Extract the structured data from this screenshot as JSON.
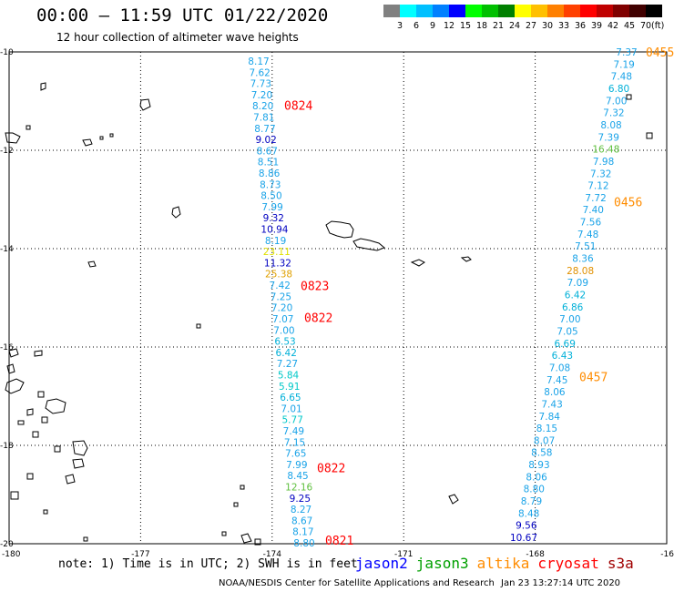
{
  "header": {
    "title": "00:00 – 11:59 UTC 01/22/2020",
    "subtitle": "12 hour collection of altimeter wave heights"
  },
  "colorbar": {
    "colors": [
      "#808080",
      "#00ffff",
      "#00c0ff",
      "#0080ff",
      "#0000ff",
      "#00ff00",
      "#00c000",
      "#008000",
      "#ffff00",
      "#ffc000",
      "#ff8000",
      "#ff4000",
      "#ff0000",
      "#c00000",
      "#800000",
      "#400000",
      "#000000"
    ],
    "labels": [
      "3",
      "6",
      "9",
      "12",
      "15",
      "18",
      "21",
      "24",
      "27",
      "30",
      "33",
      "36",
      "39",
      "42",
      "45",
      "70"
    ],
    "unit": "(ft)"
  },
  "map": {
    "lon_ticks": [
      "-180",
      "-177",
      "-174",
      "-171",
      "-168",
      "-16"
    ],
    "lat_ticks": [
      "-10",
      "-12",
      "-14",
      "-16",
      "-18",
      "-20"
    ],
    "lon_range": [
      -180,
      -165
    ],
    "lat_range": [
      -20,
      -10
    ]
  },
  "tracks": {
    "west": {
      "color": "#1aa3e8",
      "values": [
        "8.17",
        "7.62",
        "7.73",
        "7.20",
        "8.20",
        "7.81",
        "8.77",
        "9.02",
        "8.67",
        "8.51",
        "8.86",
        "8.73",
        "8.50",
        "7.99",
        "9.32",
        "10.94",
        "8.19",
        "23.11",
        "11.32",
        "25.38",
        "7.42",
        "7.25",
        "7.20",
        "7.07",
        "7.00",
        "6.53",
        "6.42",
        "7.27",
        "5.84",
        "5.91",
        "6.65",
        "7.01",
        "5.77",
        "7.49",
        "7.15",
        "7.65",
        "7.99",
        "8.45",
        "12.16",
        "9.25",
        "8.27",
        "8.67",
        "8.17",
        "8.80"
      ],
      "value_colors": {
        "9.02": "#0000c0",
        "9.32": "#0000c0",
        "10.94": "#0000c0",
        "11.32": "#0000c0",
        "9.25": "#0000c0",
        "23.11": "#e0e000",
        "25.38": "#e0a000",
        "12.16": "#60c040",
        "5.84": "#00c8c8",
        "5.91": "#00c8c8",
        "5.77": "#00c8c8",
        "6.53": "#00b0d8",
        "6.42": "#00b0d8",
        "6.65": "#00b0d8"
      },
      "times": [
        {
          "label": "0824",
          "lat": -11.08
        },
        {
          "label": "0823",
          "lat": -14.75
        },
        {
          "label": "0822",
          "lat": -15.4
        },
        {
          "label": "0822",
          "lat": -18.45
        },
        {
          "label": "0821",
          "lat": -19.93
        }
      ]
    },
    "east": {
      "color": "#1aa3e8",
      "values": [
        "7.37",
        "7.19",
        "7.48",
        "6.80",
        "7.00",
        "7.32",
        "8.08",
        "7.39",
        "16.48",
        "7.98",
        "7.32",
        "7.12",
        "7.72",
        "7.40",
        "7.56",
        "7.48",
        "7.51",
        "8.36",
        "28.08",
        "7.09",
        "6.42",
        "6.86",
        "7.00",
        "7.05",
        "6.69",
        "6.43",
        "7.08",
        "7.45",
        "8.06",
        "7.43",
        "7.84",
        "8.15",
        "8.07",
        "8.58",
        "8.93",
        "8.06",
        "8.80",
        "8.79",
        "8.48",
        "9.56",
        "10.67"
      ],
      "value_colors": {
        "16.48": "#60c040",
        "28.08": "#e09000",
        "6.42": "#00b0d8",
        "6.80": "#00b0d8",
        "6.86": "#00b0d8",
        "6.69": "#00b0d8",
        "6.43": "#00b0d8",
        "9.56": "#0000c0",
        "10.67": "#0000c0"
      },
      "times": [
        {
          "label": "0455",
          "lat": -10.0
        },
        {
          "label": "0456",
          "lat": -13.05
        },
        {
          "label": "0457",
          "lat": -16.6
        }
      ]
    }
  },
  "footer": {
    "note": "note: 1) Time is in UTC; 2) SWH is in feet",
    "legend": [
      {
        "label": "jason2",
        "color": "#0000ff"
      },
      {
        "label": "jason3",
        "color": "#00a000"
      },
      {
        "label": "altika",
        "color": "#ff8c00"
      },
      {
        "label": "cryosat",
        "color": "#ff0000"
      },
      {
        "label": "s3a",
        "color": "#a00000"
      }
    ],
    "credit": "NOAA/NESDIS Center for Satellite Applications and Research",
    "timestamp": "Jan 23 13:27:14 UTC 2020"
  }
}
